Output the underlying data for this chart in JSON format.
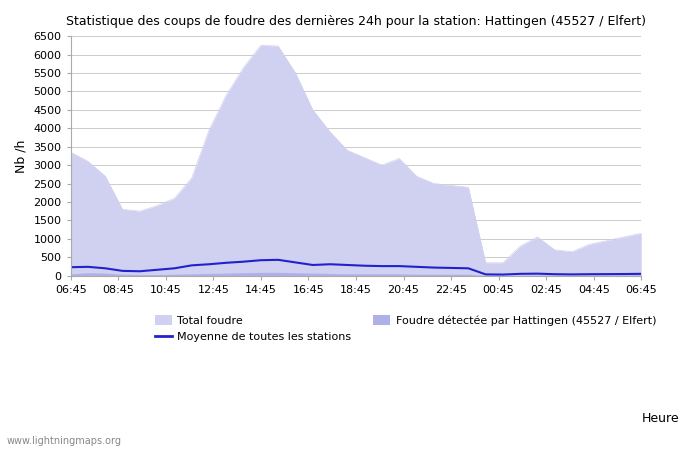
{
  "title": "Statistique des coups de foudre des dernières 24h pour la station: Hattingen (45527 / Elfert)",
  "xlabel": "Heure",
  "ylabel": "Nb /h",
  "xlim_labels": [
    "06:45",
    "08:45",
    "10:45",
    "12:45",
    "14:45",
    "16:45",
    "18:45",
    "20:45",
    "22:45",
    "00:45",
    "02:45",
    "04:45",
    "06:45"
  ],
  "ylim": [
    0,
    6500
  ],
  "yticks": [
    0,
    500,
    1000,
    1500,
    2000,
    2500,
    3000,
    3500,
    4000,
    4500,
    5000,
    5500,
    6000,
    6500
  ],
  "background_color": "#ffffff",
  "grid_color": "#cccccc",
  "fill_color_total": "#d0d0f0",
  "fill_color_station": "#b0b0e8",
  "line_color_moyenne": "#2222cc",
  "watermark": "www.lightningmaps.org",
  "legend_items": [
    {
      "label": "Total foudre",
      "color": "#d0d0f0",
      "type": "patch"
    },
    {
      "label": "Moyenne de toutes les stations",
      "color": "#2222cc",
      "type": "line"
    },
    {
      "label": "Foudre détectée par Hattingen (45527 / Elfert)",
      "color": "#b0b0e8",
      "type": "patch"
    }
  ],
  "total_foudre": [
    3350,
    3100,
    2700,
    1800,
    1750,
    1900,
    2100,
    2650,
    3950,
    4900,
    5650,
    6250,
    6230,
    5500,
    4500,
    3900,
    3400,
    3200,
    3000,
    3180,
    2700,
    2500,
    2450,
    2400,
    350,
    350,
    800,
    1050,
    700,
    650,
    850,
    950,
    1050,
    1150
  ],
  "station_foudre": [
    50,
    80,
    70,
    40,
    30,
    30,
    40,
    50,
    60,
    70,
    80,
    90,
    90,
    80,
    70,
    60,
    50,
    50,
    50,
    50,
    40,
    40,
    40,
    40,
    5,
    5,
    10,
    15,
    12,
    10,
    12,
    14,
    18,
    20
  ],
  "moyenne": [
    230,
    240,
    200,
    130,
    120,
    160,
    200,
    280,
    310,
    350,
    380,
    420,
    430,
    360,
    290,
    310,
    290,
    270,
    260,
    260,
    240,
    220,
    210,
    200,
    35,
    30,
    50,
    55,
    40,
    35,
    40,
    42,
    45,
    50
  ],
  "n_points": 34
}
